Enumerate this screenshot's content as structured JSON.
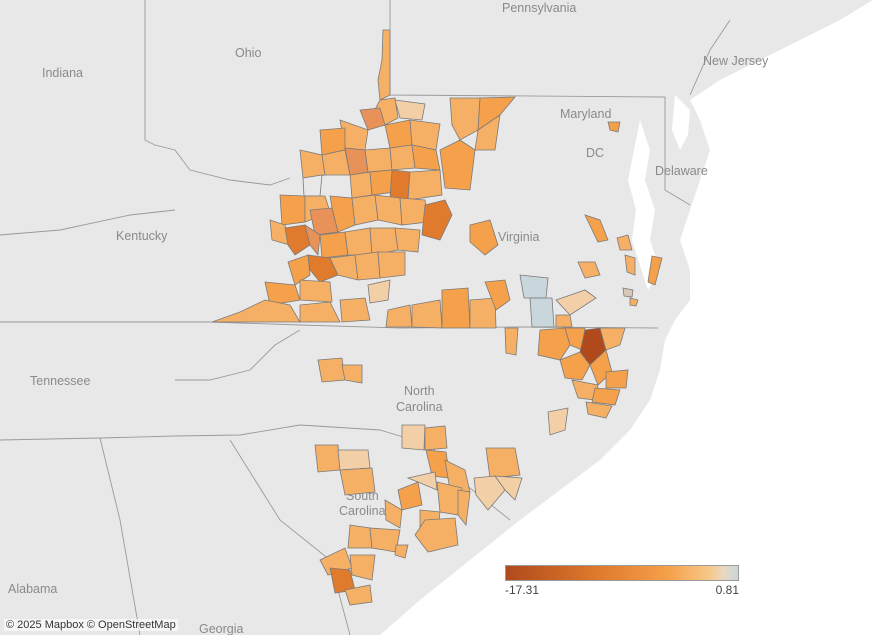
{
  "map": {
    "place_labels": [
      {
        "id": "pennsylvania",
        "text": "Pennsylvania"
      },
      {
        "id": "ohio",
        "text": "Ohio"
      },
      {
        "id": "indiana",
        "text": "Indiana"
      },
      {
        "id": "new-jersey",
        "text": "New Jersey"
      },
      {
        "id": "maryland",
        "text": "Maryland"
      },
      {
        "id": "dc",
        "text": "DC"
      },
      {
        "id": "delaware",
        "text": "Delaware"
      },
      {
        "id": "kentucky",
        "text": "Kentucky"
      },
      {
        "id": "virginia",
        "text": "Virginia"
      },
      {
        "id": "tennessee",
        "text": "Tennessee"
      },
      {
        "id": "north-carolina-1",
        "text": "North"
      },
      {
        "id": "north-carolina-2",
        "text": "Carolina"
      },
      {
        "id": "south-carolina-1",
        "text": "South"
      },
      {
        "id": "south-carolina-2",
        "text": "Carolina"
      },
      {
        "id": "alabama",
        "text": "Alabama"
      },
      {
        "id": "georgia",
        "text": "Georgia"
      }
    ],
    "colors": {
      "background": "#f1f1f1",
      "land": "#e6e6e6",
      "water": "#ffffff",
      "darkest": "#b04a1c",
      "dark": "#e07a2c",
      "mid": "#f5a04a",
      "light": "#f6b066",
      "pale": "#f3cfa8",
      "neutral": "#c9d6dc"
    }
  },
  "legend": {
    "min_label": "-17.31",
    "max_label": "0.81"
  },
  "attribution": "© 2025 Mapbox © OpenStreetMap"
}
